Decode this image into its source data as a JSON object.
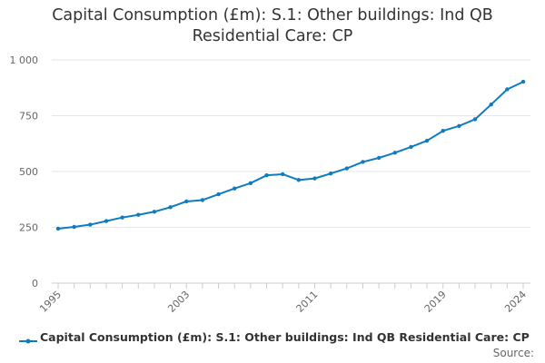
{
  "chart_data": {
    "type": "line",
    "title_lines": [
      "Capital Consumption (£m): S.1: Other buildings: Ind QB",
      "Residential Care: CP"
    ],
    "x_start_year": 1995,
    "x_end_year": 2024,
    "x_tick_labels": [
      "1995",
      "2003",
      "2011",
      "2019",
      "2024"
    ],
    "y_ticks": [
      0,
      250,
      500,
      750,
      1000
    ],
    "y_tick_labels": [
      "0",
      "250",
      "500",
      "750",
      "1 000"
    ],
    "ylim": [
      0,
      1000
    ],
    "series": [
      {
        "name": "Capital Consumption (£m): S.1: Other buildings: Ind QB Residential Care: CP",
        "color": "#0f7cbf",
        "values": [
          244,
          252,
          262,
          278,
          294,
          306,
          320,
          340,
          366,
          372,
          398,
          424,
          448,
          483,
          488,
          462,
          469,
          491,
          514,
          543,
          561,
          584,
          610,
          638,
          682,
          704,
          734,
          800,
          868,
          902
        ]
      }
    ],
    "source_label": "Source:"
  }
}
